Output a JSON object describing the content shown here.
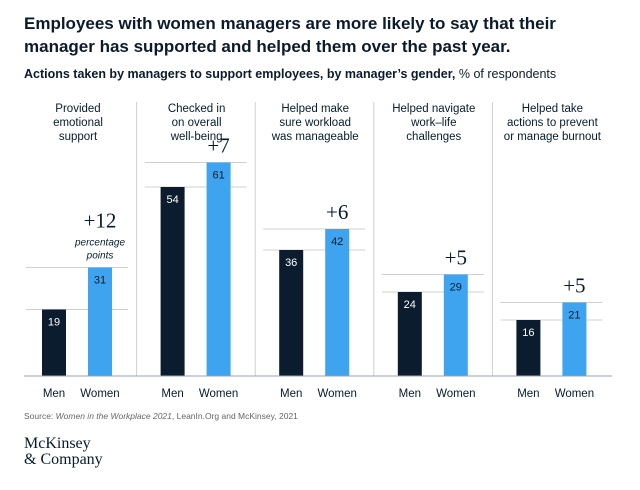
{
  "title": "Employees with women managers are more likely to say that their manager has supported and helped them over the past year.",
  "subtitle": {
    "bold": "Actions taken by managers to support employees, by manager’s gender,",
    "normal": " % of respondents"
  },
  "source": {
    "prefix": "Source: ",
    "italic": "Women in the Workplace 2021",
    "suffix": ", LeanIn.Org and McKinsey, 2021"
  },
  "logo": {
    "line1": "McKinsey",
    "line2": "& Company"
  },
  "colors": {
    "men": "#0a1c2e",
    "women": "#3ea4f0",
    "gridline": "#d0d0d0",
    "text": "#051c2c"
  },
  "chart_data": {
    "type": "bar",
    "title": "Employees with women managers are more likely to say that their manager has supported and helped them over the past year.",
    "subtitle": "Actions taken by managers to support employees, by manager’s gender, % of respondents",
    "categories": [
      "Provided emotional support",
      "Checked in on overall well-being",
      "Helped make sure workload was manageable",
      "Helped navigate work–life challenges",
      "Helped take actions to prevent or manage burnout"
    ],
    "panels": [
      {
        "label_lines": [
          "Provided",
          "emotional",
          "support"
        ],
        "men": 19,
        "women": 31,
        "diff": "+12",
        "diff_note": [
          "percentage",
          "points"
        ]
      },
      {
        "label_lines": [
          "Checked in",
          "on overall",
          "well-being"
        ],
        "men": 54,
        "women": 61,
        "diff": "+7",
        "diff_note": []
      },
      {
        "label_lines": [
          "Helped make",
          "sure workload",
          "was manageable"
        ],
        "men": 36,
        "women": 42,
        "diff": "+6",
        "diff_note": []
      },
      {
        "label_lines": [
          "Helped navigate",
          "work–life",
          "challenges"
        ],
        "men": 24,
        "women": 29,
        "diff": "+5",
        "diff_note": []
      },
      {
        "label_lines": [
          "Helped take",
          "actions to prevent",
          "or manage burnout"
        ],
        "men": 16,
        "women": 21,
        "diff": "+5",
        "diff_note": []
      }
    ],
    "series": [
      {
        "name": "Men",
        "values": [
          19,
          54,
          36,
          24,
          16
        ]
      },
      {
        "name": "Women",
        "values": [
          31,
          61,
          42,
          29,
          21
        ]
      }
    ],
    "x_labels": [
      "Men",
      "Women"
    ],
    "ylim": [
      0,
      100
    ],
    "unit": "% of respondents"
  }
}
